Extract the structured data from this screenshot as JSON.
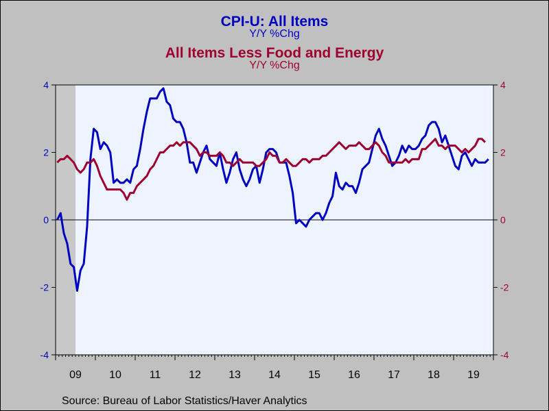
{
  "chart_data": {
    "type": "line",
    "titles": [
      {
        "text": "CPI-U: All Items",
        "sub": "Y/Y %Chg",
        "color": "#0000c0"
      },
      {
        "text": "All Items Less Food and Energy",
        "sub": "Y/Y %Chg",
        "color": "#a00030"
      }
    ],
    "source": "Source:  Bureau of Labor Statistics/Haver Analytics",
    "x_start": "2009-01",
    "x_end": "2019-12",
    "x_tick_labels": [
      "09",
      "10",
      "11",
      "12",
      "13",
      "14",
      "15",
      "16",
      "17",
      "18",
      "19"
    ],
    "ylim": [
      -4,
      4
    ],
    "y_ticks": [
      -4,
      -2,
      0,
      2,
      4
    ],
    "y_axis_colors": {
      "left": "#0000c0",
      "right": "#a00030"
    },
    "recession": {
      "start": "2009-01",
      "end": "2009-06",
      "color": "#c8c8c8"
    },
    "zero_line": true,
    "plot_background": "#eef4ff",
    "series": [
      {
        "name": "CPI-U: All Items",
        "axis": "left",
        "color": "#0000c0",
        "start": "2009-01",
        "values": [
          0.0,
          0.2,
          -0.4,
          -0.7,
          -1.3,
          -1.4,
          -2.1,
          -1.5,
          -1.3,
          -0.2,
          1.8,
          2.7,
          2.6,
          2.1,
          2.3,
          2.2,
          2.0,
          1.1,
          1.2,
          1.1,
          1.1,
          1.2,
          1.1,
          1.5,
          1.6,
          2.1,
          2.7,
          3.2,
          3.6,
          3.6,
          3.6,
          3.8,
          3.9,
          3.5,
          3.4,
          3.0,
          2.9,
          2.9,
          2.7,
          2.3,
          1.7,
          1.7,
          1.4,
          1.7,
          2.0,
          2.2,
          1.8,
          1.7,
          1.6,
          2.0,
          1.5,
          1.1,
          1.4,
          1.8,
          2.0,
          1.5,
          1.2,
          1.0,
          1.2,
          1.5,
          1.6,
          1.1,
          1.5,
          2.0,
          2.1,
          2.1,
          2.0,
          1.7,
          1.7,
          1.7,
          1.3,
          0.8,
          -0.1,
          0.0,
          -0.1,
          -0.2,
          0.0,
          0.1,
          0.2,
          0.2,
          0.0,
          0.2,
          0.5,
          0.7,
          1.4,
          1.0,
          0.9,
          1.1,
          1.0,
          1.0,
          0.8,
          1.1,
          1.5,
          1.6,
          1.7,
          2.1,
          2.5,
          2.7,
          2.4,
          2.2,
          1.9,
          1.6,
          1.7,
          1.9,
          2.2,
          2.0,
          2.2,
          2.1,
          2.1,
          2.2,
          2.4,
          2.5,
          2.8,
          2.9,
          2.9,
          2.7,
          2.3,
          2.5,
          2.2,
          1.9,
          1.6,
          1.5,
          1.9,
          2.0,
          1.8,
          1.6,
          1.8,
          1.7,
          1.7,
          1.7,
          1.8
        ],
        "last_value": 1.8
      },
      {
        "name": "All Items Less Food and Energy",
        "axis": "right",
        "color": "#a00030",
        "start": "2009-01",
        "values": [
          1.7,
          1.8,
          1.8,
          1.9,
          1.8,
          1.7,
          1.5,
          1.4,
          1.5,
          1.7,
          1.7,
          1.8,
          1.6,
          1.3,
          1.1,
          0.9,
          0.9,
          0.9,
          0.9,
          0.9,
          0.8,
          0.6,
          0.8,
          0.8,
          1.0,
          1.1,
          1.2,
          1.3,
          1.5,
          1.6,
          1.8,
          2.0,
          2.0,
          2.1,
          2.2,
          2.2,
          2.3,
          2.2,
          2.3,
          2.3,
          2.3,
          2.2,
          2.1,
          1.9,
          2.0,
          2.0,
          1.9,
          1.9,
          1.9,
          2.0,
          1.9,
          1.7,
          1.7,
          1.6,
          1.7,
          1.8,
          1.7,
          1.7,
          1.7,
          1.7,
          1.6,
          1.6,
          1.7,
          1.8,
          2.0,
          1.9,
          1.9,
          1.7,
          1.7,
          1.8,
          1.7,
          1.6,
          1.6,
          1.7,
          1.8,
          1.8,
          1.7,
          1.8,
          1.8,
          1.8,
          1.9,
          1.9,
          2.0,
          2.1,
          2.2,
          2.3,
          2.2,
          2.1,
          2.2,
          2.2,
          2.2,
          2.3,
          2.2,
          2.1,
          2.1,
          2.2,
          2.3,
          2.2,
          2.0,
          1.9,
          1.7,
          1.7,
          1.7,
          1.7,
          1.7,
          1.8,
          1.7,
          1.8,
          1.8,
          1.8,
          2.1,
          2.1,
          2.2,
          2.3,
          2.4,
          2.2,
          2.2,
          2.1,
          2.2,
          2.2,
          2.2,
          2.1,
          2.0,
          2.1,
          2.0,
          2.1,
          2.2,
          2.4,
          2.4,
          2.3
        ],
        "last_value": 2.3
      }
    ]
  }
}
